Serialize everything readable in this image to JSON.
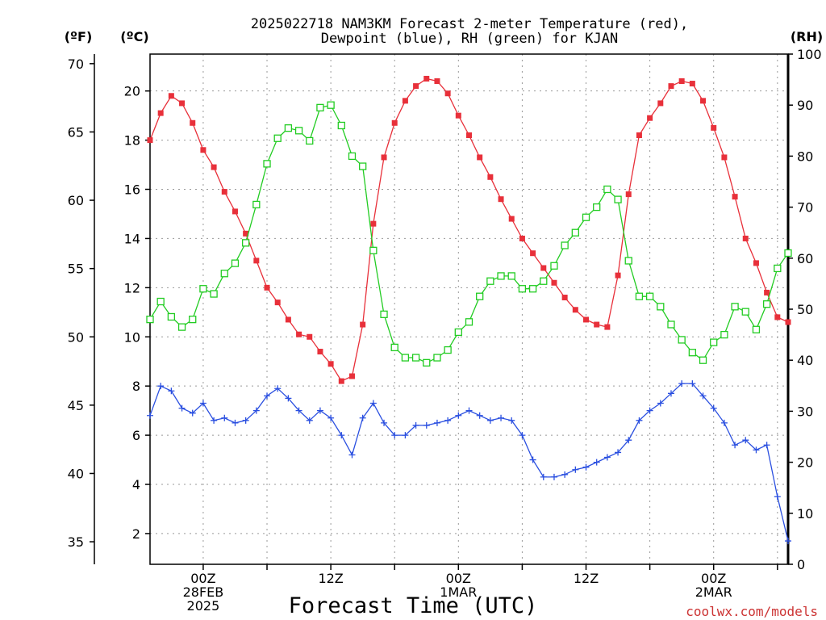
{
  "chart_data": {
    "type": "line",
    "title_lines": [
      "2025022718 NAM3KM Forecast 2-meter Temperature (red),",
      "Dewpoint (blue), RH (green) for KJAN"
    ],
    "xlabel": "Forecast Time (UTC)",
    "credit": "coolwx.com/models",
    "x_hours": {
      "start": -5,
      "end": 55,
      "step": 1
    },
    "x_ticks": [
      {
        "hour": 0,
        "lines": [
          "00Z",
          "28FEB",
          "2025"
        ]
      },
      {
        "hour": 12,
        "lines": [
          "12Z"
        ]
      },
      {
        "hour": 24,
        "lines": [
          "00Z",
          "1MAR"
        ]
      },
      {
        "hour": 36,
        "lines": [
          "12Z"
        ]
      },
      {
        "hour": 48,
        "lines": [
          "00Z",
          "2MAR"
        ]
      }
    ],
    "axes": {
      "celsius": {
        "unit": "(ºC)",
        "ylim": [
          0.75,
          21.5
        ],
        "ticks": [
          2,
          4,
          6,
          8,
          10,
          12,
          14,
          16,
          18,
          20
        ]
      },
      "fahrenheit": {
        "unit": "(ºF)",
        "ylim": [
          33.35,
          70.7
        ],
        "ticks": [
          35,
          40,
          45,
          50,
          55,
          60,
          65,
          70
        ]
      },
      "rh": {
        "unit": "(RH)",
        "ylim": [
          0,
          100
        ],
        "ticks": [
          0,
          10,
          20,
          30,
          40,
          50,
          60,
          70,
          80,
          90,
          100
        ]
      }
    },
    "series": [
      {
        "name": "Temperature",
        "color": "#e8303a",
        "marker": "filled-square",
        "axis": "celsius",
        "values": [
          18.0,
          19.1,
          19.8,
          19.5,
          18.7,
          17.6,
          16.9,
          15.9,
          15.1,
          14.2,
          13.1,
          12.0,
          11.4,
          10.7,
          10.1,
          10.0,
          9.4,
          8.9,
          8.2,
          8.4,
          10.5,
          14.6,
          17.3,
          18.7,
          19.6,
          20.2,
          20.5,
          20.4,
          19.9,
          19.0,
          18.2,
          17.3,
          16.5,
          15.6,
          14.8,
          14.0,
          13.4,
          12.8,
          12.2,
          11.6,
          11.1,
          10.7,
          10.5,
          10.4,
          12.5,
          15.8,
          18.2,
          18.9,
          19.5,
          20.2,
          20.4,
          20.3,
          19.6,
          18.5,
          17.3,
          15.7,
          14.0,
          13.0,
          11.8,
          10.8,
          10.6
        ]
      },
      {
        "name": "Dewpoint",
        "color": "#2a4fe0",
        "marker": "plus",
        "axis": "celsius",
        "values": [
          6.8,
          8.0,
          7.8,
          7.1,
          6.9,
          7.3,
          6.6,
          6.7,
          6.5,
          6.6,
          7.0,
          7.6,
          7.9,
          7.5,
          7.0,
          6.6,
          7.0,
          6.7,
          6.0,
          5.2,
          6.7,
          7.3,
          6.5,
          6.0,
          6.0,
          6.4,
          6.4,
          6.5,
          6.6,
          6.8,
          7.0,
          6.8,
          6.6,
          6.7,
          6.6,
          6.0,
          5.0,
          4.3,
          4.3,
          4.4,
          4.6,
          4.7,
          4.9,
          5.1,
          5.3,
          5.8,
          6.6,
          7.0,
          7.3,
          7.7,
          8.1,
          8.1,
          7.6,
          7.1,
          6.5,
          5.6,
          5.8,
          5.4,
          5.6,
          3.5,
          1.7
        ]
      },
      {
        "name": "RH",
        "color": "#22cc22",
        "marker": "open-square",
        "axis": "rh",
        "values": [
          48.0,
          51.5,
          48.5,
          46.5,
          48.0,
          54.0,
          53.0,
          57.0,
          59.0,
          63.0,
          70.5,
          78.5,
          83.5,
          85.5,
          85.0,
          83.0,
          89.5,
          90.0,
          86.0,
          80.0,
          78.0,
          61.5,
          49.0,
          42.5,
          40.5,
          40.5,
          39.5,
          40.5,
          42.0,
          45.5,
          47.5,
          52.5,
          55.5,
          56.5,
          56.5,
          54.0,
          54.0,
          55.5,
          58.5,
          62.5,
          65.0,
          68.0,
          70.0,
          73.5,
          71.5,
          59.5,
          52.5,
          52.5,
          50.5,
          47.0,
          44.0,
          41.5,
          40.0,
          43.5,
          45.0,
          50.5,
          49.5,
          46.0,
          51.0,
          58.0,
          61.0
        ]
      }
    ],
    "grid": true,
    "legend": "none"
  }
}
